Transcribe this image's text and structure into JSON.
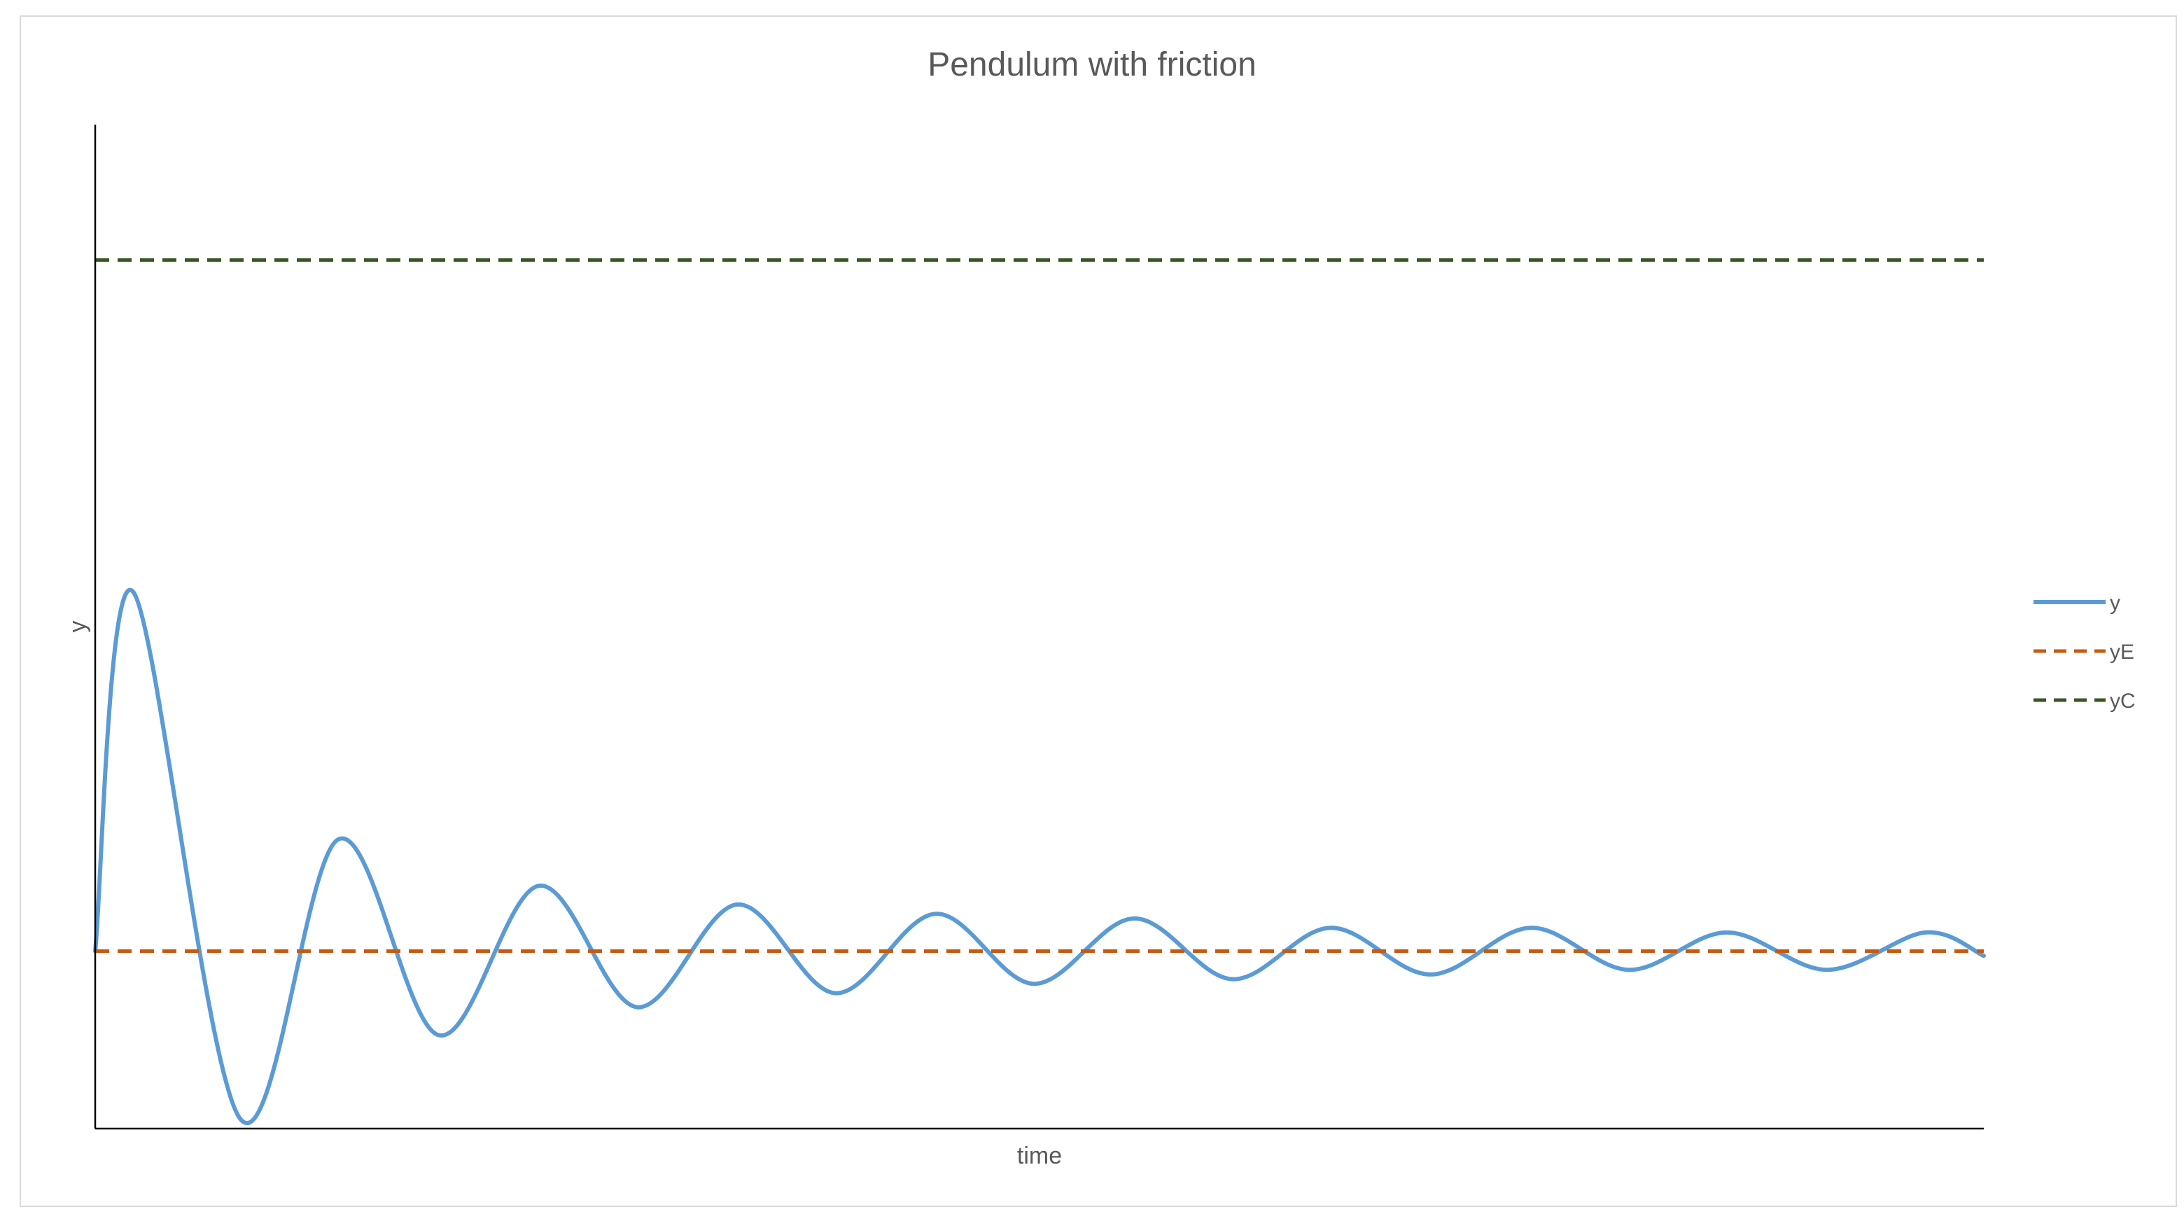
{
  "chart_data": {
    "type": "line",
    "title": "Pendulum with friction",
    "xlabel": "time",
    "ylabel": "y",
    "xlim": [
      0,
      1
    ],
    "ylim": [
      -0.38,
      1.77
    ],
    "grid": false,
    "legend_position": "right",
    "series": [
      {
        "name": "y",
        "color": "#5B9BD5",
        "style": "solid",
        "x": [
          0,
          0.02,
          0.077,
          0.129,
          0.182,
          0.235,
          0.287,
          0.34,
          0.392,
          0.445,
          0.497,
          0.55,
          0.602,
          0.654,
          0.707,
          0.76,
          0.812,
          0.864,
          0.917,
          0.969,
          1.0
        ],
        "values": [
          0.0,
          0.77,
          -0.36,
          0.24,
          -0.18,
          0.14,
          -0.12,
          0.1,
          -0.09,
          0.08,
          -0.07,
          0.07,
          -0.06,
          0.05,
          -0.05,
          0.05,
          -0.04,
          0.04,
          -0.04,
          0.04,
          -0.01
        ]
      },
      {
        "name": "yE",
        "color": "#C55A11",
        "style": "dashed",
        "x": [
          0,
          1
        ],
        "values": [
          0,
          0
        ]
      },
      {
        "name": "yC",
        "color": "#375623",
        "style": "dashed",
        "x": [
          0,
          1
        ],
        "values": [
          1.48,
          1.48
        ]
      }
    ]
  }
}
